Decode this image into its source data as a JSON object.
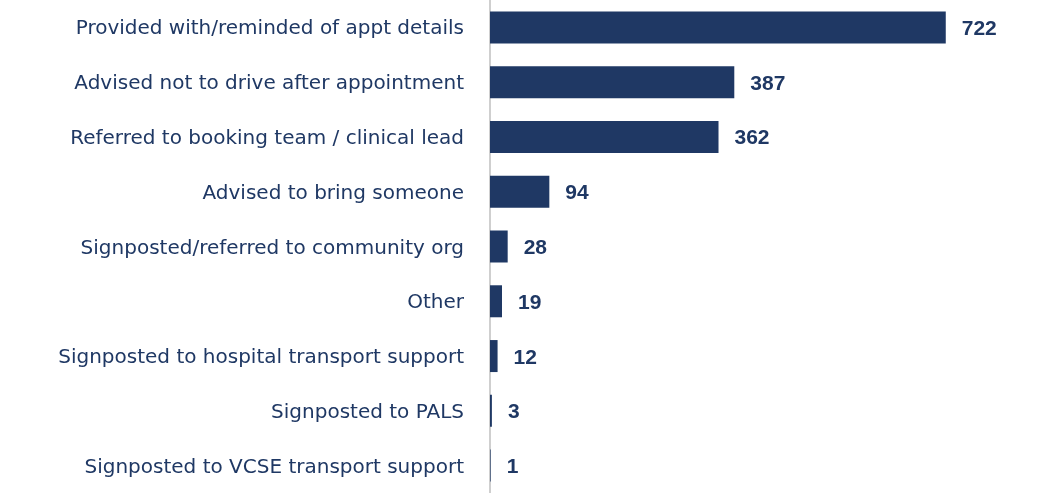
{
  "chart_data": {
    "type": "bar",
    "orientation": "horizontal",
    "data_labels": true,
    "categories": [
      "Provided with/reminded of appt details",
      "Advised not to drive after appointment",
      "Referred to booking team / clinical lead",
      "Advised to bring someone",
      "Signposted/referred to community org",
      "Other",
      "Signposted to hospital transport support",
      "Signposted to PALS",
      "Signposted to VCSE transport support"
    ],
    "values": [
      722,
      387,
      362,
      94,
      28,
      19,
      12,
      3,
      1
    ],
    "color": "#1f3864"
  }
}
